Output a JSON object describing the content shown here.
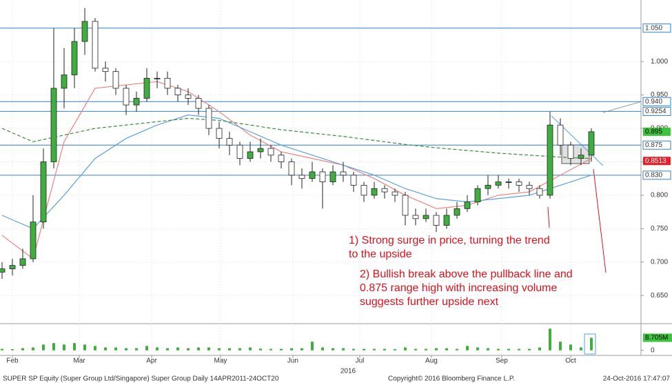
{
  "chart_data": {
    "type": "candlestick",
    "x": [
      0,
      1,
      2,
      3,
      4,
      5,
      6,
      7,
      8,
      9,
      10,
      11,
      12,
      13,
      14,
      15,
      16,
      17,
      18,
      19,
      20,
      21,
      22,
      23,
      24,
      25,
      26,
      27,
      28,
      29,
      30,
      31,
      32,
      33,
      34,
      35,
      36,
      37,
      38,
      39,
      40,
      41,
      42,
      43,
      44,
      45,
      46,
      47,
      48,
      49,
      50,
      51,
      52,
      53,
      54,
      55,
      56,
      57
    ],
    "open": [
      0.685,
      0.69,
      0.695,
      0.705,
      0.76,
      0.85,
      0.96,
      0.98,
      1.03,
      1.06,
      0.99,
      0.985,
      0.96,
      0.935,
      0.945,
      0.975,
      0.975,
      0.96,
      0.95,
      0.945,
      0.93,
      0.9,
      0.885,
      0.875,
      0.855,
      0.865,
      0.87,
      0.86,
      0.85,
      0.83,
      0.825,
      0.835,
      0.82,
      0.835,
      0.83,
      0.815,
      0.8,
      0.81,
      0.805,
      0.8,
      0.77,
      0.765,
      0.77,
      0.755,
      0.77,
      0.78,
      0.79,
      0.81,
      0.815,
      0.82,
      0.82,
      0.815,
      0.81,
      0.8,
      0.905,
      0.875,
      0.855,
      0.86
    ],
    "high": [
      0.7,
      0.705,
      0.72,
      0.8,
      0.87,
      1.05,
      1.02,
      1.05,
      1.08,
      1.065,
      1.0,
      0.99,
      0.965,
      0.955,
      0.99,
      0.985,
      0.985,
      0.965,
      0.96,
      0.95,
      0.935,
      0.91,
      0.895,
      0.88,
      0.88,
      0.885,
      0.875,
      0.865,
      0.855,
      0.84,
      0.85,
      0.84,
      0.845,
      0.85,
      0.835,
      0.82,
      0.82,
      0.815,
      0.81,
      0.805,
      0.78,
      0.78,
      0.775,
      0.78,
      0.79,
      0.8,
      0.815,
      0.83,
      0.83,
      0.825,
      0.825,
      0.82,
      0.815,
      0.925,
      0.915,
      0.88,
      0.87,
      0.9
    ],
    "low": [
      0.675,
      0.68,
      0.69,
      0.7,
      0.75,
      0.84,
      0.93,
      0.96,
      1.01,
      0.985,
      0.97,
      0.95,
      0.92,
      0.925,
      0.94,
      0.96,
      0.95,
      0.94,
      0.935,
      0.92,
      0.89,
      0.87,
      0.86,
      0.845,
      0.85,
      0.855,
      0.85,
      0.84,
      0.815,
      0.81,
      0.82,
      0.78,
      0.815,
      0.82,
      0.805,
      0.79,
      0.795,
      0.795,
      0.79,
      0.755,
      0.755,
      0.76,
      0.745,
      0.75,
      0.765,
      0.775,
      0.785,
      0.8,
      0.81,
      0.81,
      0.805,
      0.8,
      0.795,
      0.795,
      0.86,
      0.845,
      0.845,
      0.85
    ],
    "close": [
      0.69,
      0.695,
      0.705,
      0.76,
      0.85,
      0.96,
      0.98,
      1.03,
      1.06,
      0.99,
      0.985,
      0.96,
      0.935,
      0.945,
      0.975,
      0.975,
      0.96,
      0.95,
      0.945,
      0.93,
      0.9,
      0.885,
      0.875,
      0.855,
      0.865,
      0.87,
      0.86,
      0.85,
      0.83,
      0.825,
      0.835,
      0.82,
      0.835,
      0.83,
      0.815,
      0.8,
      0.81,
      0.805,
      0.8,
      0.77,
      0.765,
      0.77,
      0.755,
      0.77,
      0.78,
      0.79,
      0.81,
      0.815,
      0.82,
      0.82,
      0.815,
      0.81,
      0.8,
      0.905,
      0.875,
      0.855,
      0.86,
      0.895
    ],
    "up_color": "#3fae3f",
    "down_color": "#ffffff",
    "xlim": [
      -0.2,
      61.8
    ],
    "ylim": [
      0.609,
      1.092
    ],
    "yticks": [
      {
        "value": 1.0,
        "label": "1.000"
      },
      {
        "value": 0.95,
        "label": "0.950"
      },
      {
        "value": 0.9,
        "label": "0.900"
      },
      {
        "value": 0.85,
        "label": "0.850"
      },
      {
        "value": 0.8,
        "label": "0.800"
      },
      {
        "value": 0.75,
        "label": "0.750"
      },
      {
        "value": 0.7,
        "label": "0.700"
      },
      {
        "value": 0.65,
        "label": "0.650"
      }
    ],
    "xticks": [
      {
        "value": 1,
        "label": "Feb"
      },
      {
        "value": 7.47,
        "label": "Mar"
      },
      {
        "value": 14.47,
        "label": "Apr"
      },
      {
        "value": 21.13,
        "label": "May"
      },
      {
        "value": 28.13,
        "label": "Jun"
      },
      {
        "value": 34.6,
        "label": "Jul"
      },
      {
        "value": 41.53,
        "label": "Aug"
      },
      {
        "value": 48.33,
        "label": "Sep"
      },
      {
        "value": 55,
        "label": "Oct"
      }
    ],
    "year_label": "2016",
    "grid": true,
    "overlay_x": [
      0,
      3,
      6,
      9,
      12,
      15,
      18,
      21,
      24,
      27,
      30,
      33,
      36,
      39,
      42,
      45,
      48,
      51,
      54,
      57
    ],
    "overlays": [
      {
        "color": "#ef8080",
        "dashed": false,
        "values": [
          0.74,
          0.705,
          0.88,
          0.96,
          0.965,
          0.97,
          0.955,
          0.925,
          0.89,
          0.865,
          0.855,
          0.845,
          0.825,
          0.8,
          0.78,
          0.785,
          0.8,
          0.805,
          0.83,
          0.855
        ]
      },
      {
        "color": "#5aa0e0",
        "dashed": false,
        "values": [
          0.77,
          0.75,
          0.8,
          0.855,
          0.885,
          0.905,
          0.92,
          0.915,
          0.895,
          0.875,
          0.86,
          0.845,
          0.83,
          0.81,
          0.795,
          0.79,
          0.795,
          0.8,
          0.815,
          0.83
        ]
      },
      {
        "color": "#3a8a3a",
        "dashed": true,
        "values": [
          0.9,
          0.88,
          0.89,
          0.9,
          0.905,
          0.91,
          0.915,
          0.912,
          0.905,
          0.898,
          0.893,
          0.888,
          0.882,
          0.876,
          0.871,
          0.867,
          0.863,
          0.86,
          0.857,
          0.855
        ]
      }
    ],
    "levels": [
      {
        "value": 1.05,
        "label": "1.050",
        "color": "#2f7fd0"
      },
      {
        "value": 0.94,
        "label": "0.940",
        "color": "#2f7fd0"
      },
      {
        "value": 0.9254,
        "label": "0.9254",
        "color": "#2f7fd0"
      },
      {
        "value": 0.875,
        "label": "0.875",
        "color": "#2f7fd0"
      },
      {
        "value": 0.83,
        "label": "0.830",
        "color": "#2f7fd0"
      }
    ],
    "price_labels": [
      {
        "value": 0.895,
        "label": "0.895",
        "color": "#3cc43c"
      },
      {
        "value": 0.8513,
        "label": "0.8513",
        "color": "#e8202a"
      }
    ],
    "annotations": [
      {
        "color": "#e0101a",
        "lines": [
          "1) Strong surge in price, turning the trend",
          "to the upside"
        ]
      },
      {
        "color": "#e0101a",
        "lines": [
          "2) Bullish break above the pullback line and",
          "0.875 range high with increasing volume",
          "suggests further upside next"
        ]
      }
    ],
    "volume": {
      "values": [
        1,
        0.8,
        1.5,
        2,
        4,
        5,
        4,
        5,
        4,
        3,
        2,
        2,
        1.5,
        1.5,
        3,
        2,
        1.5,
        2,
        1.5,
        2,
        2,
        1.5,
        1.5,
        1.5,
        2,
        1.2,
        1,
        1,
        1.5,
        1.5,
        6,
        2,
        1.5,
        1.5,
        1,
        1,
        1,
        1,
        0.8,
        2,
        1,
        1,
        1.5,
        1.5,
        1,
        3,
        2,
        1.5,
        1,
        1,
        1,
        1,
        2,
        15,
        6,
        4,
        2,
        8.705
      ],
      "ylim": [
        -3.5,
        18
      ],
      "yticks": [
        0
      ],
      "last_label": "8.705M",
      "color": "#3fae3f",
      "label_color": "#3cc43c"
    },
    "footer": {
      "left": "SUPER SP Equity (Super Group Ltd/Singapore) Super Group  Daily 14APR2011-24OCT20",
      "center": "Copyright© 2016 Bloomberg Finance L.P.",
      "right": "24-Oct-2016 17:47:07"
    }
  }
}
